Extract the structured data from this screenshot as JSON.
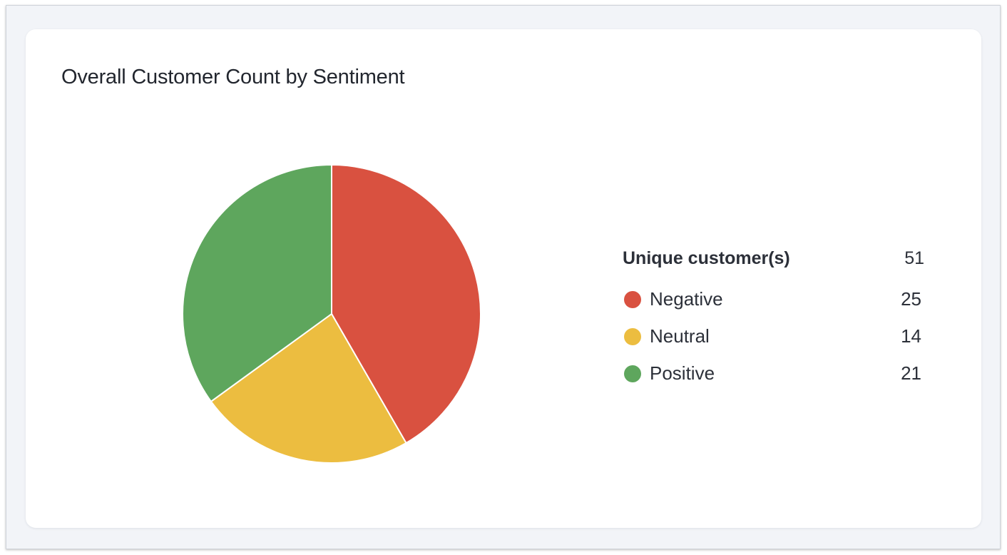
{
  "widget": {
    "title": "Overall Customer Count by Sentiment"
  },
  "chart_data": {
    "type": "pie",
    "title": "Overall Customer Count by Sentiment",
    "total_label": "Unique customer(s)",
    "total": "51",
    "legend_position": "right",
    "slices": [
      {
        "name": "Negative",
        "value": 25,
        "color": "#d95140"
      },
      {
        "name": "Neutral",
        "value": 14,
        "color": "#ecbd40"
      },
      {
        "name": "Positive",
        "value": 21,
        "color": "#5ea65d"
      }
    ]
  }
}
